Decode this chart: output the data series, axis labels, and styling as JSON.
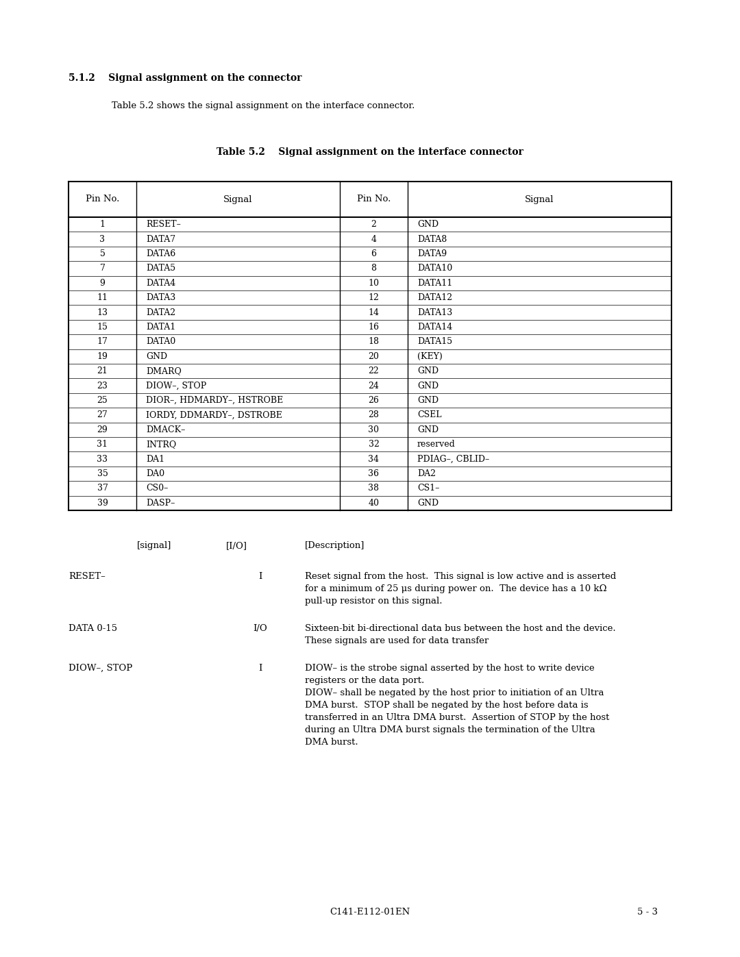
{
  "bg_color": "#ffffff",
  "section_title": "5.1.2    Signal assignment on the connector",
  "intro_text": "Table 5.2 shows the signal assignment on the interface connector.",
  "table_title": "Table 5.2    Signal assignment on the interface connector",
  "table_headers": [
    "Pin No.",
    "Signal",
    "Pin No.",
    "Signal"
  ],
  "table_rows": [
    [
      "1",
      "RESET–",
      "2",
      "GND"
    ],
    [
      "3",
      "DATA7",
      "4",
      "DATA8"
    ],
    [
      "5",
      "DATA6",
      "6",
      "DATA9"
    ],
    [
      "7",
      "DATA5",
      "8",
      "DATA10"
    ],
    [
      "9",
      "DATA4",
      "10",
      "DATA11"
    ],
    [
      "11",
      "DATA3",
      "12",
      "DATA12"
    ],
    [
      "13",
      "DATA2",
      "14",
      "DATA13"
    ],
    [
      "15",
      "DATA1",
      "16",
      "DATA14"
    ],
    [
      "17",
      "DATA0",
      "18",
      "DATA15"
    ],
    [
      "19",
      "GND",
      "20",
      "(KEY)"
    ],
    [
      "21",
      "DMARQ",
      "22",
      "GND"
    ],
    [
      "23",
      "DIOW–, STOP",
      "24",
      "GND"
    ],
    [
      "25",
      "DIOR–, HDMARDY–, HSTROBE",
      "26",
      "GND"
    ],
    [
      "27",
      "IORDY, DDMARDY–, DSTROBE",
      "28",
      "CSEL"
    ],
    [
      "29",
      "DMACK–",
      "30",
      "GND"
    ],
    [
      "31",
      "INTRQ",
      "32",
      "reserved"
    ],
    [
      "33",
      "DA1",
      "34",
      "PDIAG–, CBLID–"
    ],
    [
      "35",
      "DA0",
      "36",
      "DA2"
    ],
    [
      "37",
      "CS0–",
      "38",
      "CS1–"
    ],
    [
      "39",
      "DASP–",
      "40",
      "GND"
    ]
  ],
  "signals": [
    {
      "name": "RESET–",
      "io": "I",
      "description": "Reset signal from the host.  This signal is low active and is asserted\nfor a minimum of 25 μs during power on.  The device has a 10 kΩ\npull-up resistor on this signal."
    },
    {
      "name": "DATA 0-15",
      "io": "I/O",
      "description": "Sixteen-bit bi-directional data bus between the host and the device.\nThese signals are used for data transfer"
    },
    {
      "name": "DIOW–, STOP",
      "io": "I",
      "description": "DIOW– is the strobe signal asserted by the host to write device\nregisters or the data port.\nDIOW– shall be negated by the host prior to initiation of an Ultra\nDMA burst.  STOP shall be negated by the host before data is\ntransferred in an Ultra DMA burst.  Assertion of STOP by the host\nduring an Ultra DMA burst signals the termination of the Ultra\nDMA burst."
    }
  ],
  "footer_left": "C141-E112-01EN",
  "footer_right": "5 - 3"
}
